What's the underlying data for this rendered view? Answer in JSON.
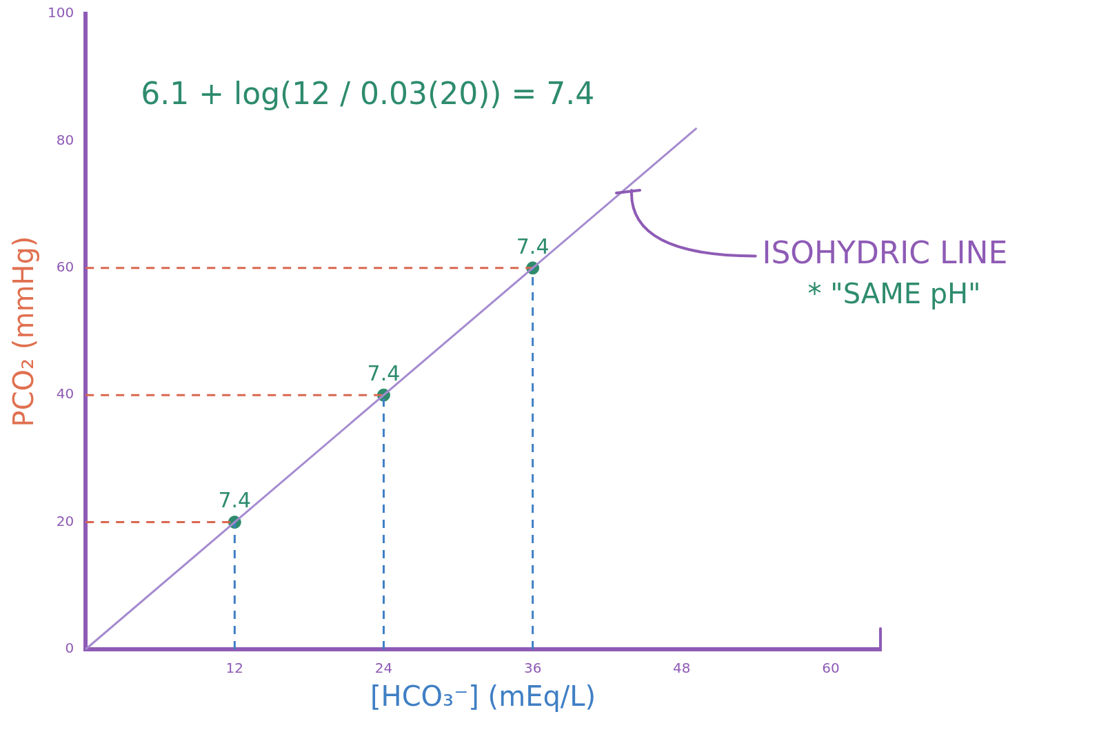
{
  "chart_data": {
    "type": "line",
    "xlabel": "[HCO₃⁻] (mEq/L)",
    "ylabel": "PCO₂ (mmHg)",
    "xlim": [
      0,
      64
    ],
    "xticks": [
      12,
      24,
      36,
      48,
      60
    ],
    "ylim": [
      0,
      100
    ],
    "yticks": [
      0,
      20,
      40,
      60,
      80,
      100
    ],
    "grid": false,
    "legend": false,
    "series": [
      {
        "name": "ISOHYDRIC LINE",
        "color": "#a58bd0",
        "x": [
          0,
          49.2
        ],
        "values": [
          0,
          82
        ],
        "marker": "none",
        "line_style": "solid"
      },
      {
        "type": "scatter",
        "color": "#2e8b6e",
        "x": [
          12,
          24,
          36
        ],
        "values": [
          20,
          40,
          60
        ],
        "marker": "circle"
      },
      {
        "type": "line",
        "color": "#d9674f",
        "x": [
          0,
          12
        ],
        "values": [
          20,
          20
        ],
        "marker": "none",
        "line_style": "dashed"
      },
      {
        "type": "line",
        "color": "#d9674f",
        "x": [
          0,
          24
        ],
        "values": [
          40,
          40
        ],
        "marker": "none",
        "line_style": "dashed"
      },
      {
        "type": "line",
        "color": "#d9674f",
        "x": [
          0,
          36
        ],
        "values": [
          60,
          60
        ],
        "marker": "none",
        "line_style": "dashed"
      },
      {
        "type": "line",
        "color": "#3f7fc4",
        "x": [
          12,
          12
        ],
        "values": [
          0,
          20
        ],
        "marker": "none",
        "line_style": "dashed"
      },
      {
        "type": "line",
        "color": "#3f7fc4",
        "x": [
          24,
          24
        ],
        "values": [
          0,
          40
        ],
        "marker": "none",
        "line_style": "dashed"
      },
      {
        "type": "line",
        "color": "#3f7fc4",
        "x": [
          36,
          36
        ],
        "values": [
          0,
          60
        ],
        "marker": "none",
        "line_style": "dashed"
      }
    ],
    "annotations": [
      "6.1 + log(12 / 0.03(20)) = 7.4",
      "* \"SAME pH\"",
      {
        "text": "7.4",
        "x": 12,
        "y": 20
      },
      {
        "text": "7.4",
        "x": 24,
        "y": 40
      },
      {
        "text": "7.4",
        "x": 36,
        "y": 60
      }
    ]
  }
}
